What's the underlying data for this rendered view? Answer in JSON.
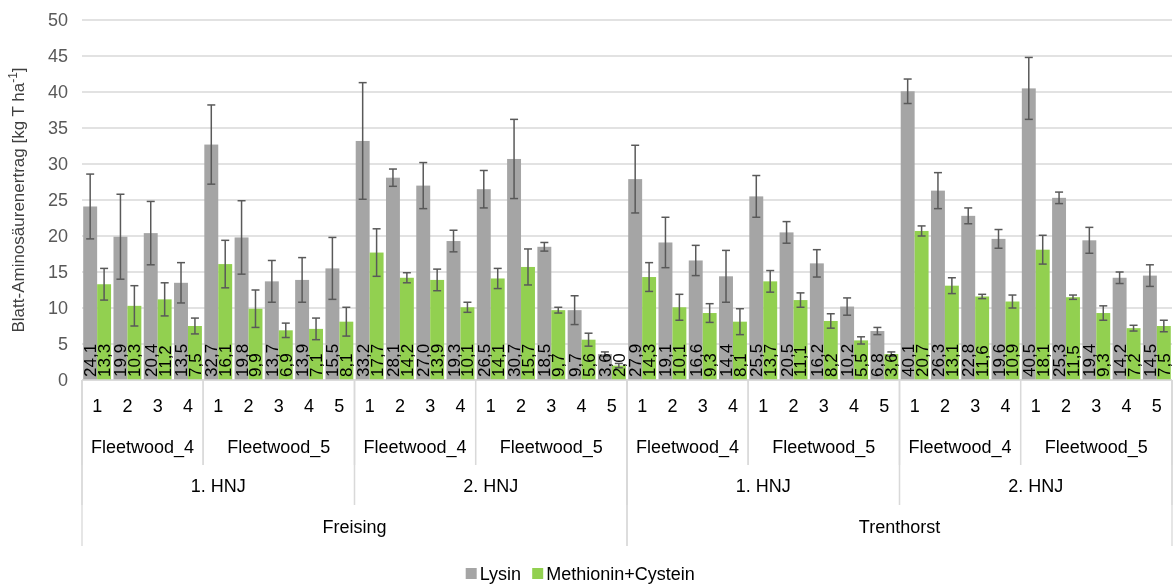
{
  "chart_data": {
    "type": "bar",
    "ylabel": "Blatt-Aminosäurenertrag [kg T ha$^{-1}$]",
    "categories": [
      "1",
      "2",
      "3",
      "4",
      "1",
      "2",
      "3",
      "4",
      "5",
      "1",
      "2",
      "3",
      "4",
      "1",
      "2",
      "3",
      "4",
      "5",
      "1",
      "2",
      "3",
      "4",
      "1",
      "2",
      "3",
      "4",
      "5",
      "1",
      "2",
      "3",
      "4",
      "1",
      "2",
      "3",
      "4",
      "5"
    ],
    "annotations": [
      "Fleetwood_4",
      "Fleetwood_5",
      "Fleetwood_4",
      "Fleetwood_5",
      "Fleetwood_4",
      "Fleetwood_5",
      "Fleetwood_4",
      "Fleetwood_5",
      "1. HNJ",
      "2. HNJ",
      "1. HNJ",
      "2. HNJ",
      "Freising",
      "Trenthorst"
    ],
    "series": [
      {
        "name": "Lysin",
        "color": "#a5a5a5",
        "values": [
          24.1,
          19.9,
          20.4,
          13.5,
          32.7,
          19.8,
          13.7,
          13.9,
          15.5,
          33.2,
          28.1,
          27.0,
          19.3,
          26.5,
          30.7,
          18.5,
          9.7,
          3.6,
          27.9,
          19.1,
          16.6,
          14.4,
          25.5,
          20.5,
          16.2,
          10.2,
          6.8,
          40.1,
          26.3,
          22.8,
          19.6,
          40.5,
          25.3,
          19.4,
          14.2,
          14.5
        ],
        "errors": [
          4.5,
          5.9,
          4.4,
          2.8,
          5.5,
          5.1,
          2.9,
          3.1,
          4.3,
          8.1,
          1.2,
          3.2,
          1.5,
          2.6,
          5.5,
          0.6,
          2.0,
          0.3,
          4.7,
          3.5,
          2.1,
          3.6,
          2.9,
          1.5,
          1.9,
          1.2,
          0.5,
          1.7,
          2.5,
          1.1,
          1.3,
          4.3,
          0.8,
          1.8,
          0.8,
          1.5
        ],
        "value_labels": [
          "24,1",
          "19,9",
          "20,4",
          "13,5",
          "32,7",
          "19,8",
          "13,7",
          "13,9",
          "15,5",
          "33,2",
          "28,1",
          "27,0",
          "19,3",
          "26,5",
          "30,7",
          "18,5",
          "9,7",
          "3,6",
          "27,9",
          "19,1",
          "16,6",
          "14,4",
          "25,5",
          "20,5",
          "16,2",
          "10,2",
          "6,8",
          "40,1",
          "26,3",
          "22,8",
          "19,6",
          "40,5",
          "25,3",
          "19,4",
          "14,2",
          "14,5"
        ]
      },
      {
        "name": "Methionin+Cystein",
        "color": "#92d050",
        "values": [
          13.3,
          10.3,
          11.2,
          7.5,
          16.1,
          9.9,
          6.9,
          7.1,
          8.1,
          17.7,
          14.2,
          13.9,
          10.1,
          14.1,
          15.7,
          9.7,
          5.6,
          2.0,
          14.3,
          10.1,
          9.3,
          8.1,
          13.7,
          11.1,
          8.2,
          5.5,
          3.6,
          20.7,
          13.1,
          11.6,
          10.9,
          18.1,
          11.5,
          9.3,
          7.2,
          7.5
        ],
        "errors": [
          2.2,
          2.8,
          2.3,
          1.1,
          3.3,
          2.6,
          1.0,
          1.5,
          2.0,
          3.3,
          0.7,
          1.5,
          0.7,
          1.4,
          2.5,
          0.4,
          0.9,
          0.3,
          2.0,
          1.8,
          1.3,
          1.8,
          1.5,
          1.0,
          1.0,
          0.5,
          0.3,
          0.7,
          1.1,
          0.3,
          0.9,
          2.0,
          0.3,
          1.0,
          0.4,
          0.8
        ],
        "value_labels": [
          "13,3",
          "10,3",
          "11,2",
          "7,5",
          "16,1",
          "9,9",
          "6,9",
          "7,1",
          "8,1",
          "17,7",
          "14,2",
          "13,9",
          "10,1",
          "14,1",
          "15,7",
          "9,7",
          "5,6",
          "2,0",
          "14,3",
          "10,1",
          "9,3",
          "8,1",
          "13,7",
          "11,1",
          "8,2",
          "5,5",
          "3,6",
          "20,7",
          "13,1",
          "11,6",
          "10,9",
          "18,1",
          "11,5",
          "9,3",
          "7,2",
          "7,5"
        ]
      }
    ],
    "ylim": [
      0,
      50
    ],
    "yticks": [
      0,
      5,
      10,
      15,
      20,
      25,
      30,
      35,
      40,
      45,
      50
    ],
    "grid": "y",
    "legend": "bottom"
  }
}
